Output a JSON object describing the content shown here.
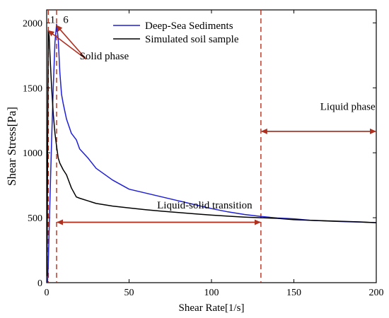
{
  "chart_data": {
    "type": "line",
    "xlabel": "Shear Rate[1/s]",
    "ylabel": "Shear Stress[Pa]",
    "xlim": [
      0,
      200
    ],
    "ylim": [
      0,
      2100
    ],
    "xticks": [
      0,
      50,
      100,
      150,
      200
    ],
    "yticks": [
      0,
      500,
      1000,
      1500,
      2000
    ],
    "legend_position": "top-center",
    "grid": false,
    "series": [
      {
        "name": "Deep-Sea Sediments",
        "color": "#1f1fd6",
        "x": [
          0.5,
          1,
          2,
          3,
          4,
          5,
          6,
          7,
          8,
          9,
          10,
          12,
          15,
          18,
          20,
          25,
          30,
          40,
          50,
          60,
          70,
          80,
          90,
          100,
          110,
          120,
          130,
          140,
          150,
          160,
          170,
          180,
          190,
          200
        ],
        "y": [
          0,
          150,
          650,
          1100,
          1500,
          1850,
          1990,
          1880,
          1620,
          1450,
          1380,
          1260,
          1150,
          1100,
          1030,
          960,
          880,
          790,
          720,
          690,
          660,
          630,
          600,
          570,
          545,
          525,
          510,
          498,
          492,
          480,
          475,
          470,
          466,
          462
        ]
      },
      {
        "name": "Simulated soil sample",
        "color": "#000000",
        "x": [
          0.2,
          0.5,
          1,
          1.5,
          2,
          3,
          4,
          5,
          6,
          7,
          8,
          10,
          12,
          15,
          18,
          20,
          25,
          30,
          40,
          50,
          60,
          70,
          80,
          90,
          100,
          110,
          120,
          130,
          140,
          150,
          160,
          170,
          180,
          190,
          200
        ],
        "y": [
          50,
          900,
          1940,
          1900,
          1750,
          1500,
          1300,
          1150,
          1050,
          960,
          920,
          870,
          830,
          730,
          660,
          650,
          630,
          610,
          590,
          575,
          562,
          550,
          540,
          530,
          520,
          512,
          505,
          500,
          495,
          485,
          480,
          476,
          472,
          468,
          462
        ]
      }
    ],
    "vertical_lines": [
      {
        "x": 1,
        "color": "#b03020"
      },
      {
        "x": 6,
        "color": "#b03020"
      },
      {
        "x": 130,
        "color": "#b03020"
      }
    ],
    "annotations": [
      {
        "text": "1",
        "x": 2,
        "y": 2000
      },
      {
        "text": "6",
        "x": 10,
        "y": 2000
      },
      {
        "text": "Solid phase",
        "x": 20,
        "y": 1720
      },
      {
        "text": "Liquid-solid transition",
        "x": 67,
        "y": 570
      },
      {
        "text": "Liquid phase",
        "x": 166,
        "y": 1330
      }
    ],
    "range_arrows": [
      {
        "x_from": 6,
        "x_to": 130,
        "y": 465
      },
      {
        "x_from": 130,
        "x_to": 200,
        "y": 1165
      }
    ],
    "pointer_arrows": [
      {
        "from_x": 24,
        "from_y": 1720,
        "to_x": 1,
        "to_y": 1940
      },
      {
        "from_x": 24,
        "from_y": 1720,
        "to_x": 6,
        "to_y": 1980
      }
    ]
  }
}
